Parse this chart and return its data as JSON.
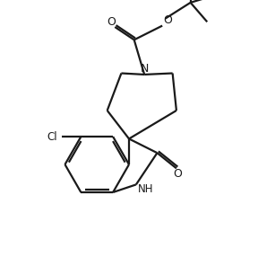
{
  "background_color": "#ffffff",
  "line_color": "#1a1a1a",
  "line_width": 1.6,
  "font_size": 8.5,
  "figsize": [
    2.88,
    2.86
  ],
  "dpi": 100,
  "xlim": [
    0,
    10
  ],
  "ylim": [
    0,
    10
  ]
}
